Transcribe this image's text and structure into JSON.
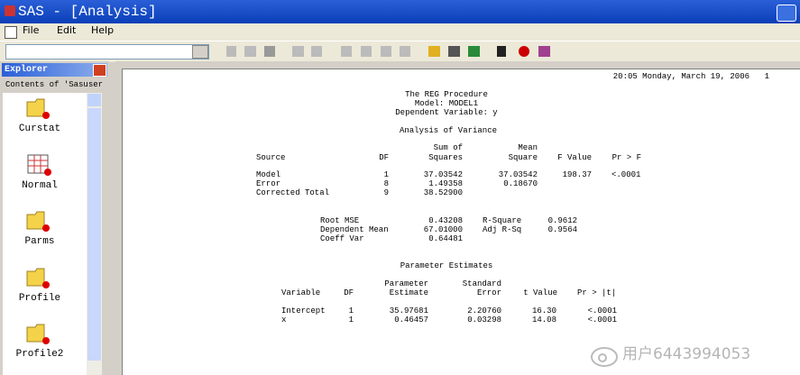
{
  "window": {
    "title": "SAS - [Analysis]"
  },
  "menu": [
    "File",
    "Edit",
    "Help"
  ],
  "explorer": {
    "title": "Explorer",
    "subtitle": "Contents of 'Sasuser",
    "items": [
      "Curstat",
      "Normal",
      "Parms",
      "Profile",
      "Profile2"
    ]
  },
  "output": {
    "timestamp": "20:05 Monday, March 19, 2006",
    "page": "1",
    "heading": [
      "The REG Procedure",
      "Model: MODEL1",
      "Dependent Variable: y"
    ],
    "anova": {
      "title": "Analysis of Variance",
      "headers": [
        "Source",
        "DF",
        [
          "Sum of",
          "Squares"
        ],
        [
          "Mean",
          "Square"
        ],
        "F Value",
        "Pr > F"
      ],
      "rows": [
        [
          "Model",
          "1",
          "37.03542",
          "37.03542",
          "198.37",
          "<.0001"
        ],
        [
          "Error",
          "8",
          "1.49358",
          "0.18670"
        ],
        [
          "Corrected Total",
          "9",
          "38.52900"
        ]
      ]
    },
    "fit": [
      [
        "Root MSE",
        "0.43208",
        "R-Square",
        "0.9612"
      ],
      [
        "Dependent Mean",
        "67.01000",
        "Adj R-Sq",
        "0.9564"
      ],
      [
        "Coeff Var",
        "0.64481"
      ]
    ],
    "params": {
      "title": "Parameter Estimates",
      "headers": [
        "Variable",
        "DF",
        [
          "Parameter",
          "Estimate"
        ],
        [
          "Standard",
          "Error"
        ],
        "t Value",
        "Pr > |t|"
      ],
      "rows": [
        [
          "Intercept",
          "1",
          "35.97681",
          "2.20760",
          "16.30",
          "<.0001"
        ],
        [
          "x",
          "1",
          "0.46457",
          "0.03298",
          "14.08",
          "<.0001"
        ]
      ]
    }
  },
  "watermark": "用户6443994053"
}
